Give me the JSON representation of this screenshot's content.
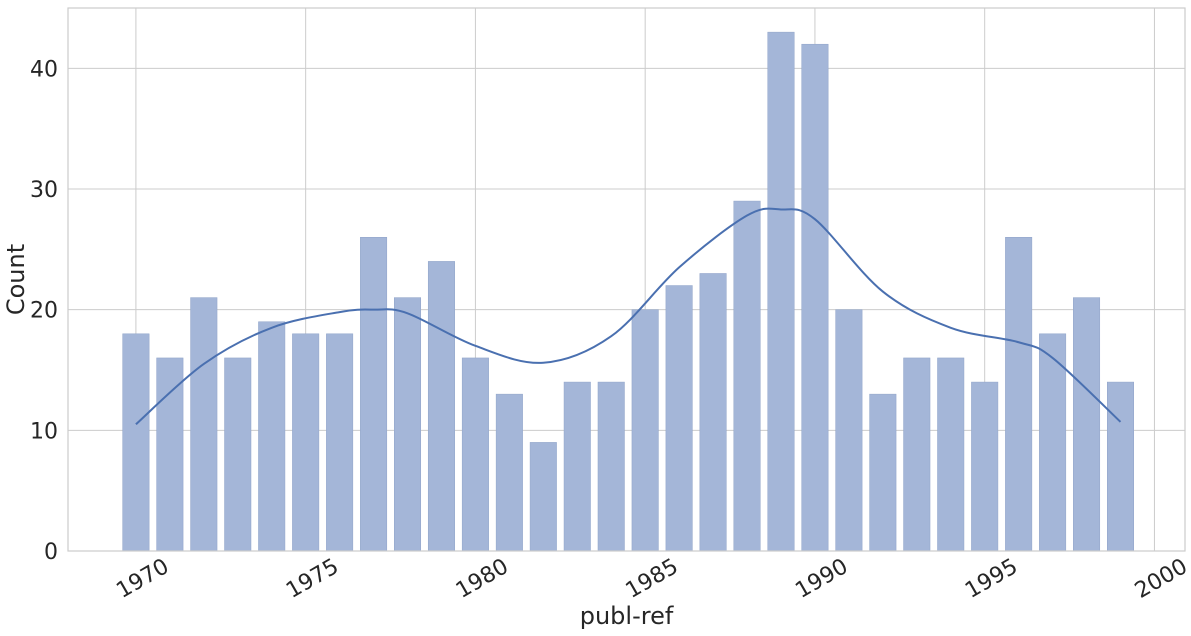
{
  "chart_data": {
    "type": "bar",
    "title": "",
    "xlabel": "publ-ref",
    "ylabel": "Count",
    "x": [
      1970,
      1971,
      1972,
      1973,
      1974,
      1975,
      1976,
      1977,
      1978,
      1979,
      1980,
      1981,
      1982,
      1983,
      1984,
      1985,
      1986,
      1987,
      1988,
      1989,
      1990,
      1991,
      1992,
      1993,
      1994,
      1995,
      1996,
      1997,
      1998,
      1999
    ],
    "values": [
      18,
      16,
      21,
      16,
      19,
      18,
      18,
      26,
      21,
      24,
      16,
      13,
      9,
      14,
      14,
      20,
      22,
      23,
      29,
      43,
      42,
      20,
      13,
      16,
      16,
      14,
      26,
      18,
      21,
      14
    ],
    "xlim": [
      1968,
      2000.9
    ],
    "ylim": [
      0,
      45
    ],
    "x_ticks": [
      1970,
      1975,
      1980,
      1985,
      1990,
      1995,
      2000
    ],
    "y_ticks": [
      0,
      10,
      20,
      30,
      40
    ],
    "x_tick_rotation_deg": -30,
    "grid": true,
    "legend": "none",
    "kde": {
      "x": [
        1970,
        1972,
        1974,
        1976,
        1977,
        1978,
        1980,
        1982,
        1984,
        1986,
        1988,
        1989,
        1990,
        1992,
        1994,
        1996,
        1997,
        1999
      ],
      "y": [
        10.5,
        15.5,
        18.5,
        19.8,
        20.0,
        19.7,
        17.0,
        15.6,
        17.8,
        23.5,
        27.8,
        28.3,
        27.5,
        21.5,
        18.5,
        17.3,
        16.0,
        10.7
      ]
    },
    "colors": {
      "bar": "#a4b6d8",
      "bar_stroke": "#8fa3c8",
      "kde": "#4a70b0",
      "text": "#262626"
    }
  }
}
